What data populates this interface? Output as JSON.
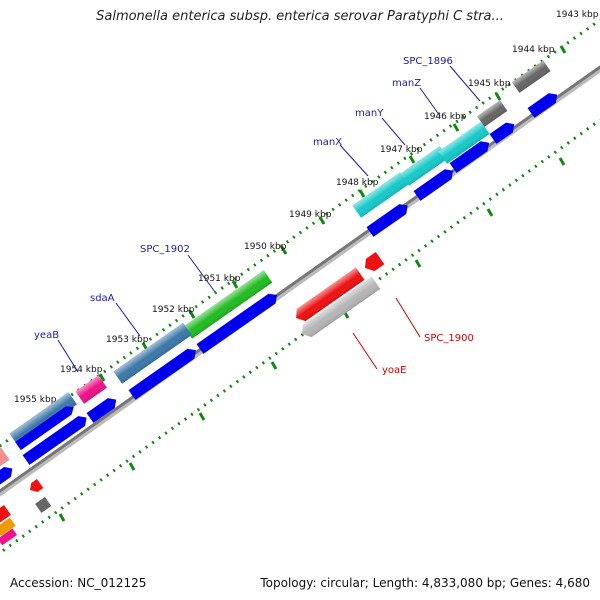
{
  "title": "Salmonella enterica subsp. enterica serovar Paratyphi C stra...",
  "footer": {
    "accession": "Accession: NC_012125",
    "summary": "Topology: circular; Length: 4,833,080 bp; Genes: 4,680"
  },
  "scale_labels": [
    "1943 kbp",
    "1944 kbp",
    "1945 kbp",
    "1946 kbp",
    "1947 kbp",
    "1948 kbp",
    "1949 kbp",
    "1950 kbp",
    "1951 kbp",
    "1952 kbp",
    "1953 kbp",
    "1954 kbp",
    "1955 kbp"
  ],
  "gene_labels": {
    "forward": [
      "SPC_1896",
      "manZ",
      "manY",
      "manX",
      "SPC_1902",
      "sdaA",
      "yeaB"
    ],
    "reverse": [
      "SPC_1900",
      "yoaE"
    ]
  },
  "colors": {
    "forward_label": "#1a1aaa",
    "reverse_label": "#cc0000",
    "cds_blue": "#0000ee",
    "cyan": "#17c9c9",
    "green": "#22bb22",
    "steel_blue": "#3d78a8",
    "red": "#ee1111",
    "gray": "#b5b5b5",
    "dark_gray": "#666666",
    "pink": "#ee1188",
    "orange": "#ee9900",
    "dots": "#118811",
    "backbone": "#888888"
  }
}
